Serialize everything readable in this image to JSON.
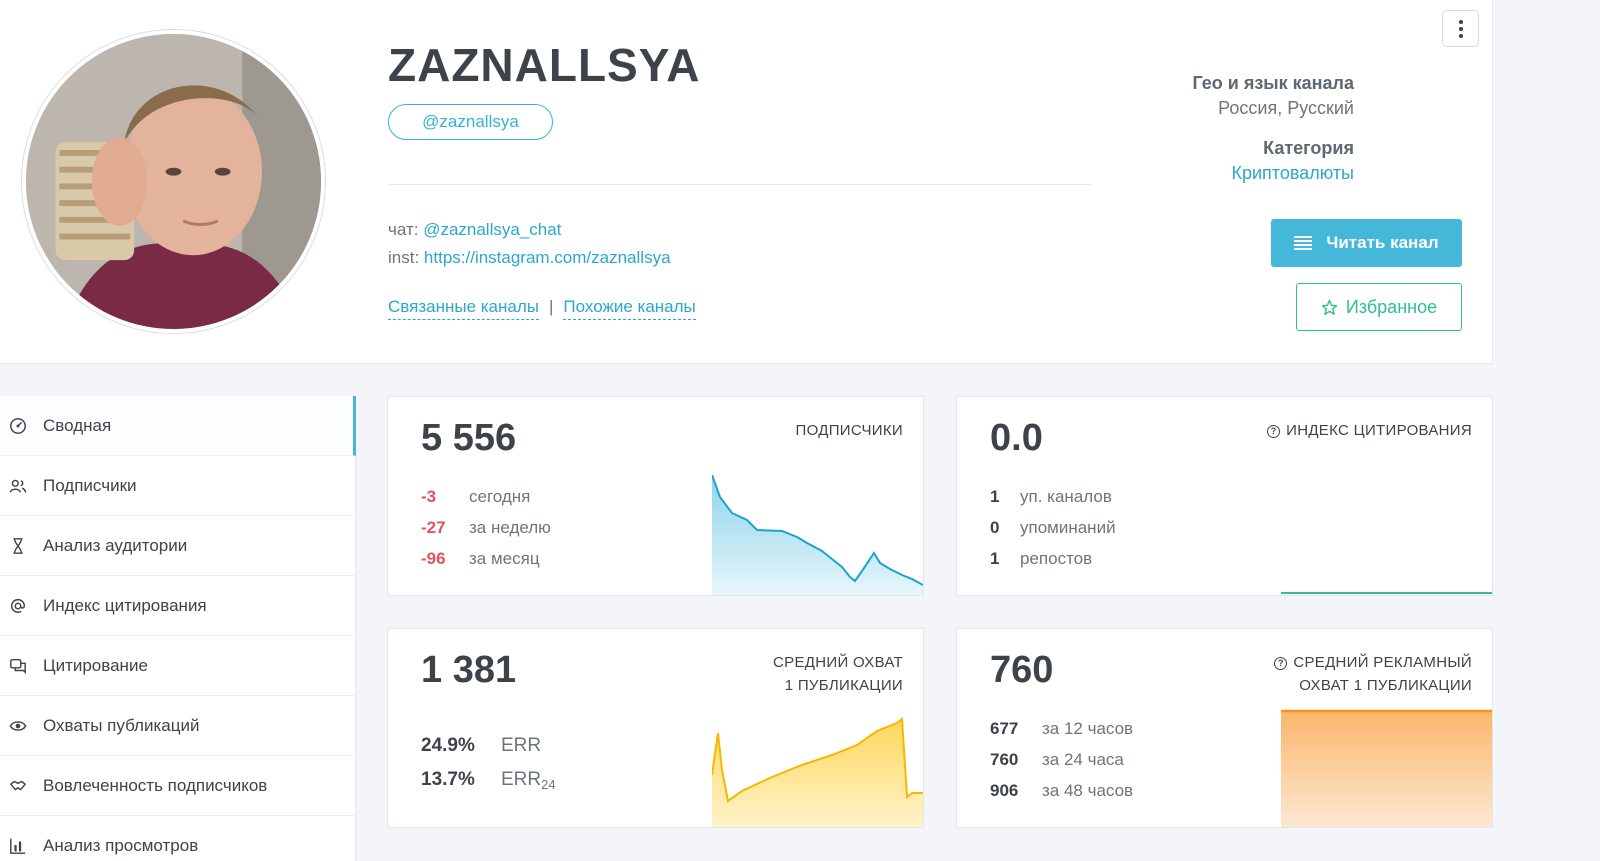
{
  "channel": {
    "title": "ZAZNALLSYA",
    "handle": "@zaznallsya",
    "chat_label": "чат:",
    "chat_link": "@zaznallsya_chat",
    "inst_label": "inst:",
    "inst_link": "https://instagram.com/zaznallsya",
    "related_link": "Связанные каналы",
    "separator": "|",
    "similar_link": "Похожие каналы"
  },
  "info": {
    "geo_label": "Гео и язык канала",
    "geo_value": "Россия, Русский",
    "category_label": "Категория",
    "category_value": "Криптовалюты"
  },
  "buttons": {
    "read": "Читать канал",
    "favorite": "Избранное"
  },
  "sidebar": {
    "items": [
      {
        "label": "Сводная",
        "icon": "dashboard-icon"
      },
      {
        "label": "Подписчики",
        "icon": "users-icon"
      },
      {
        "label": "Анализ аудитории",
        "icon": "hourglass-icon"
      },
      {
        "label": "Индекс цитирования",
        "icon": "at-icon"
      },
      {
        "label": "Цитирование",
        "icon": "quote-icon"
      },
      {
        "label": "Охваты публикаций",
        "icon": "eye-icon"
      },
      {
        "label": "Вовлеченность подписчиков",
        "icon": "handshake-icon"
      },
      {
        "label": "Анализ просмотров",
        "icon": "bar-chart-icon"
      }
    ]
  },
  "cards": {
    "subscribers": {
      "value": "5 556",
      "title": "ПОДПИСЧИКИ",
      "rows": [
        {
          "value": "-3",
          "label": "сегодня"
        },
        {
          "value": "-27",
          "label": "за неделю"
        },
        {
          "value": "-96",
          "label": "за месяц"
        }
      ],
      "color": "#1aa3d1"
    },
    "citation": {
      "value": "0.0",
      "title": "ИНДЕКС ЦИТИРОВАНИЯ",
      "rows": [
        {
          "value": "1",
          "label": "уп. каналов"
        },
        {
          "value": "0",
          "label": "упоминаний"
        },
        {
          "value": "1",
          "label": "репостов"
        }
      ],
      "color": "#2fbf92"
    },
    "reach": {
      "value": "1 381",
      "title_line1": "СРЕДНИЙ ОХВАТ",
      "title_line2": "1 ПУБЛИКАЦИИ",
      "rows": [
        {
          "value": "24.9%",
          "label": "ERR"
        },
        {
          "value": "13.7%",
          "label": "ERR",
          "sub": "24"
        }
      ],
      "color": "#f5b800"
    },
    "ad_reach": {
      "value": "760",
      "title_line1": "СРЕДНИЙ РЕКЛАМНЫЙ",
      "title_line2": "ОХВАТ 1 ПУБЛИКАЦИИ",
      "rows": [
        {
          "value": "677",
          "label": "за 12 часов"
        },
        {
          "value": "760",
          "label": "за 24 часа"
        },
        {
          "value": "906",
          "label": "за 48 часов"
        }
      ],
      "color": "#f7941d"
    }
  }
}
